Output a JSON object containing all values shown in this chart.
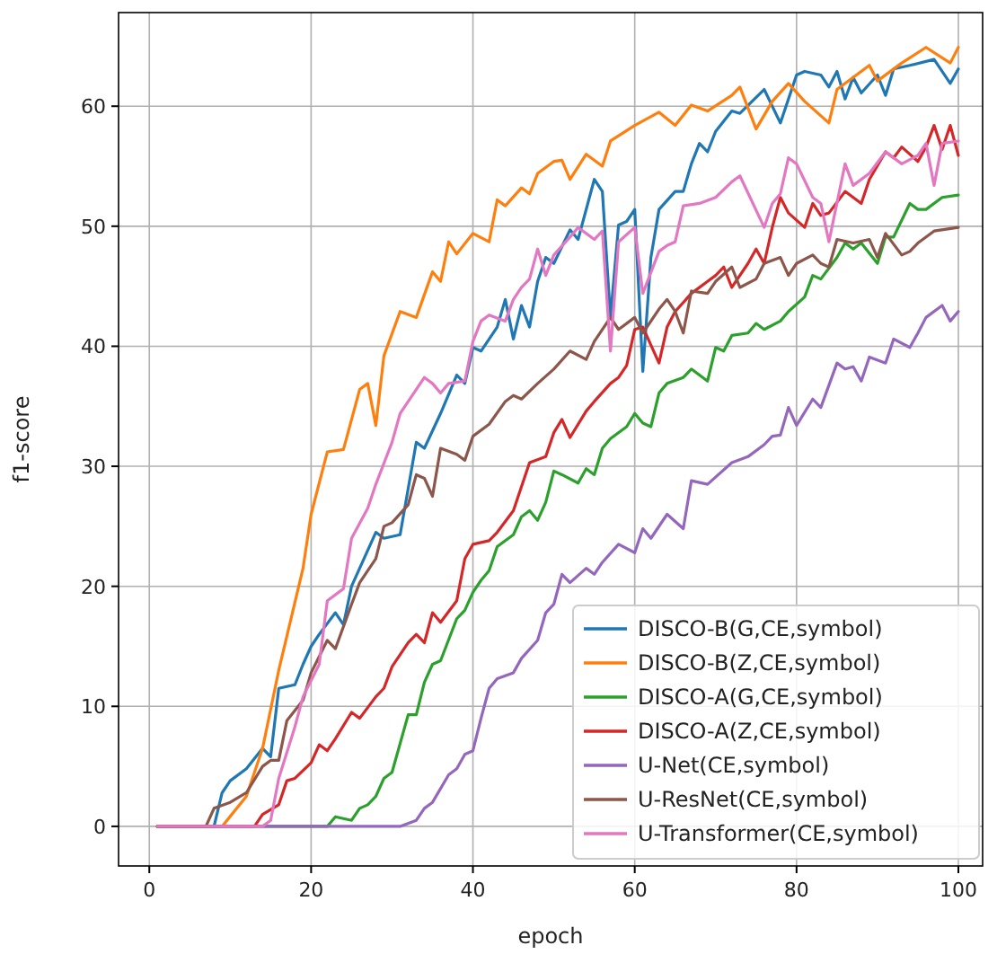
{
  "chart_data": {
    "type": "line",
    "xlabel": "epoch",
    "ylabel": "f1-score",
    "xlim": [
      -3.8,
      103
    ],
    "ylim": [
      -3.3,
      67.8
    ],
    "xticks": [
      0,
      20,
      40,
      60,
      80,
      100
    ],
    "yticks": [
      0,
      10,
      20,
      30,
      40,
      50,
      60
    ],
    "grid": true,
    "legend": "bottom right",
    "marker": "none",
    "line_style": "solid",
    "series": [
      {
        "name": "DISCO-B(G,CE,symbol)",
        "color": "#1f77b4",
        "x": [
          1,
          8,
          9,
          10,
          12,
          14,
          15,
          16,
          18,
          19,
          20,
          21,
          23,
          24,
          25,
          28,
          29,
          31,
          33,
          34,
          36,
          38,
          39,
          40,
          41,
          43,
          44,
          45,
          46,
          47,
          48,
          49,
          50,
          52,
          53,
          55,
          56,
          57,
          58,
          59,
          60,
          61,
          62,
          63,
          65,
          66,
          67,
          68,
          69,
          70,
          72,
          73,
          76,
          78,
          80,
          81,
          83,
          84,
          85,
          86,
          87,
          88,
          90,
          91,
          92,
          94,
          97,
          99,
          100
        ],
        "values": [
          0,
          0,
          2.8,
          3.8,
          4.8,
          6.5,
          5.8,
          11.5,
          11.8,
          13.5,
          15,
          16,
          17.8,
          16.8,
          20,
          24.5,
          24,
          24.3,
          32,
          31.5,
          34.4,
          37.6,
          36.9,
          39.9,
          39.6,
          41.6,
          43.9,
          40.6,
          43.4,
          41.6,
          45.4,
          47.4,
          46.9,
          49.7,
          48.9,
          53.9,
          52.9,
          42.4,
          50.1,
          50.4,
          51.4,
          37.9,
          47.4,
          51.4,
          52.9,
          52.9,
          55.2,
          56.9,
          56.2,
          57.9,
          59.6,
          59.4,
          61.4,
          58.6,
          62.6,
          62.9,
          62.6,
          61.6,
          62.9,
          60.6,
          62.4,
          61.1,
          62.6,
          60.9,
          63.1,
          63.4,
          63.9,
          61.9,
          63.1
        ]
      },
      {
        "name": "DISCO-B(Z,CE,symbol)",
        "color": "#ff7f0e",
        "x": [
          1,
          9,
          12,
          14,
          16,
          19,
          20,
          22,
          24,
          26,
          27,
          28,
          29,
          31,
          33,
          35,
          36,
          37,
          38,
          40,
          42,
          43,
          44,
          46,
          47,
          48,
          50,
          51,
          52,
          54,
          56,
          57,
          60,
          63,
          65,
          67,
          69,
          72,
          73,
          75,
          77,
          79,
          81,
          84,
          85,
          89,
          90,
          93,
          96,
          99,
          100
        ],
        "values": [
          0,
          0,
          2.5,
          6.5,
          13,
          21.5,
          26,
          31.2,
          31.4,
          36.4,
          36.9,
          33.4,
          39.2,
          42.9,
          42.4,
          46.2,
          45.4,
          48.7,
          47.7,
          49.4,
          48.7,
          52.2,
          51.7,
          53.2,
          52.7,
          54.4,
          55.4,
          55.5,
          53.9,
          56,
          55,
          57.1,
          58.4,
          59.5,
          58.4,
          60.1,
          59.6,
          60.9,
          61.6,
          58.1,
          60.4,
          61.9,
          60.4,
          58.6,
          61.4,
          63.4,
          62.1,
          63.6,
          64.9,
          63.6,
          64.9
        ]
      },
      {
        "name": "DISCO-A(G,CE,symbol)",
        "color": "#2ca02c",
        "x": [
          1,
          22,
          23,
          25,
          26,
          27,
          28,
          29,
          30,
          32,
          33,
          34,
          35,
          36,
          38,
          39,
          40,
          41,
          42,
          43,
          45,
          46,
          47,
          48,
          49,
          50,
          51,
          53,
          54,
          55,
          56,
          57,
          59,
          60,
          61,
          62,
          63,
          64,
          66,
          67,
          69,
          70,
          71,
          72,
          74,
          75,
          76,
          78,
          79,
          81,
          82,
          83,
          85,
          86,
          87,
          88,
          90,
          91,
          92,
          94,
          95,
          96,
          98,
          100
        ],
        "values": [
          0,
          0,
          0.8,
          0.5,
          1.5,
          1.8,
          2.5,
          4,
          4.5,
          9.3,
          9.3,
          12,
          13.5,
          13.8,
          17.3,
          18,
          19.5,
          20.5,
          21.3,
          23.3,
          24.3,
          25.8,
          26.3,
          25.5,
          27,
          29.6,
          29.3,
          28.6,
          29.8,
          29.3,
          31.5,
          32.3,
          33.3,
          34.4,
          33.6,
          33.3,
          36.1,
          36.9,
          37.4,
          38.1,
          37.1,
          39.9,
          39.6,
          40.9,
          41.1,
          41.9,
          41.4,
          42.1,
          42.9,
          44.1,
          45.9,
          45.6,
          47.4,
          48.6,
          48.1,
          48.6,
          46.9,
          49.1,
          49.1,
          51.9,
          51.4,
          51.4,
          52.4,
          52.6
        ]
      },
      {
        "name": "DISCO-A(Z,CE,symbol)",
        "color": "#d62728",
        "x": [
          1,
          13,
          14,
          16,
          17,
          18,
          20,
          21,
          22,
          23,
          25,
          26,
          28,
          29,
          30,
          32,
          33,
          34,
          35,
          36,
          38,
          39,
          40,
          42,
          43,
          45,
          47,
          49,
          50,
          51,
          52,
          54,
          55,
          57,
          58,
          59,
          60,
          61,
          63,
          64,
          65,
          67,
          69,
          70,
          71,
          72,
          74,
          75,
          76,
          77,
          78,
          79,
          81,
          82,
          83,
          84,
          86,
          88,
          89,
          91,
          92,
          93,
          95,
          96,
          97,
          98,
          99,
          100
        ],
        "values": [
          0,
          0,
          1,
          1.8,
          3.8,
          4,
          5.3,
          6.8,
          6.3,
          7.3,
          9.5,
          9,
          10.8,
          11.5,
          13.3,
          15.3,
          16,
          15.3,
          17.8,
          17,
          18.8,
          22.3,
          23.5,
          23.8,
          24.5,
          26.3,
          30.3,
          30.8,
          32.8,
          33.9,
          32.4,
          34.6,
          35.4,
          36.9,
          37.4,
          38.4,
          41.4,
          41.6,
          38.6,
          41.6,
          42.9,
          44.4,
          45.4,
          45.9,
          46.6,
          44.9,
          46.9,
          48.1,
          46.9,
          49.9,
          52.4,
          51.1,
          49.9,
          51.9,
          50.9,
          51.1,
          52.9,
          51.9,
          53.9,
          56.2,
          55.7,
          56.6,
          55.4,
          56.6,
          58.4,
          56.4,
          58.4,
          55.9
        ]
      },
      {
        "name": "U-Net(CE,symbol)",
        "color": "#9467bd",
        "x": [
          1,
          31,
          33,
          34,
          35,
          37,
          38,
          39,
          40,
          41,
          42,
          43,
          45,
          46,
          48,
          49,
          50,
          51,
          52,
          54,
          55,
          56,
          58,
          60,
          61,
          62,
          64,
          66,
          67,
          69,
          72,
          74,
          76,
          77,
          78,
          79,
          80,
          82,
          83,
          85,
          86,
          87,
          88,
          89,
          91,
          92,
          94,
          95,
          96,
          98,
          99,
          100
        ],
        "values": [
          0,
          0,
          0.5,
          1.5,
          2,
          4.3,
          4.8,
          6,
          6.3,
          9,
          11.5,
          12.3,
          12.8,
          14,
          15.5,
          17.8,
          18.5,
          21,
          20.3,
          21.5,
          21,
          22,
          23.5,
          22.8,
          24.8,
          24,
          26,
          24.8,
          28.8,
          28.5,
          30.3,
          30.8,
          31.8,
          32.5,
          32.6,
          34.9,
          33.4,
          35.6,
          34.9,
          38.6,
          38.1,
          38.3,
          37.1,
          39.1,
          38.6,
          40.6,
          39.9,
          41.1,
          42.4,
          43.4,
          42.1,
          42.9
        ]
      },
      {
        "name": "U-ResNet(CE,symbol)",
        "color": "#8c564b",
        "x": [
          1,
          7,
          8,
          10,
          12,
          14,
          15,
          16,
          17,
          19,
          20,
          22,
          23,
          25,
          26,
          28,
          29,
          30,
          32,
          33,
          34,
          35,
          36,
          38,
          39,
          40,
          42,
          44,
          45,
          46,
          48,
          50,
          52,
          54,
          55,
          57,
          58,
          60,
          61,
          63,
          64,
          65,
          66,
          67,
          69,
          70,
          72,
          73,
          75,
          76,
          78,
          79,
          80,
          82,
          83,
          84,
          85,
          87,
          89,
          90,
          91,
          93,
          94,
          95,
          97,
          100
        ],
        "values": [
          0,
          0,
          1.5,
          2,
          2.8,
          5,
          5.5,
          5.5,
          8.8,
          10.5,
          12.8,
          15.5,
          14.8,
          18.5,
          20.3,
          22.3,
          25,
          25.3,
          26.8,
          29.3,
          29,
          27.5,
          31.5,
          31,
          30.5,
          32.5,
          33.5,
          35.4,
          35.9,
          35.6,
          36.9,
          38.1,
          39.6,
          38.9,
          40.4,
          42.4,
          41.4,
          42.4,
          41.1,
          43.1,
          43.9,
          42.9,
          41.1,
          44.6,
          44.4,
          45.4,
          46.6,
          44.9,
          45.6,
          46.9,
          47.4,
          45.9,
          46.9,
          47.6,
          46.9,
          46.6,
          48.9,
          48.6,
          48.9,
          47.4,
          49.4,
          47.6,
          47.9,
          48.6,
          49.6,
          49.9
        ]
      },
      {
        "name": "U-Transformer(CE,symbol)",
        "color": "#e377c2",
        "x": [
          1,
          14,
          15,
          16,
          18,
          19,
          21,
          22,
          24,
          25,
          27,
          28,
          30,
          31,
          32,
          34,
          35,
          36,
          37,
          39,
          40,
          41,
          42,
          44,
          45,
          46,
          47,
          48,
          49,
          50,
          52,
          53,
          55,
          56,
          57,
          58,
          60,
          61,
          63,
          64,
          65,
          66,
          68,
          70,
          72,
          73,
          76,
          77,
          78,
          79,
          80,
          82,
          83,
          84,
          86,
          87,
          89,
          91,
          93,
          95,
          96,
          97,
          98,
          100
        ],
        "values": [
          0,
          0,
          0.5,
          4,
          8.3,
          10.8,
          13.5,
          18.8,
          19.8,
          24,
          26.5,
          28.5,
          32,
          34.4,
          35.4,
          37.4,
          36.9,
          36.1,
          36.9,
          37.1,
          40.4,
          42.1,
          42.6,
          42.1,
          43.9,
          44.9,
          45.6,
          48.1,
          45.9,
          47.6,
          49.1,
          49.9,
          48.9,
          49.6,
          39.6,
          48.7,
          49.9,
          44.4,
          47.9,
          48.4,
          48.7,
          51.7,
          51.9,
          52.4,
          53.7,
          54.2,
          49.9,
          51.9,
          52.7,
          55.7,
          55.2,
          52.4,
          51.9,
          48.7,
          55.2,
          53.4,
          54.4,
          56.2,
          55.2,
          55.9,
          56.9,
          53.4,
          56.9,
          57.1
        ]
      }
    ]
  }
}
